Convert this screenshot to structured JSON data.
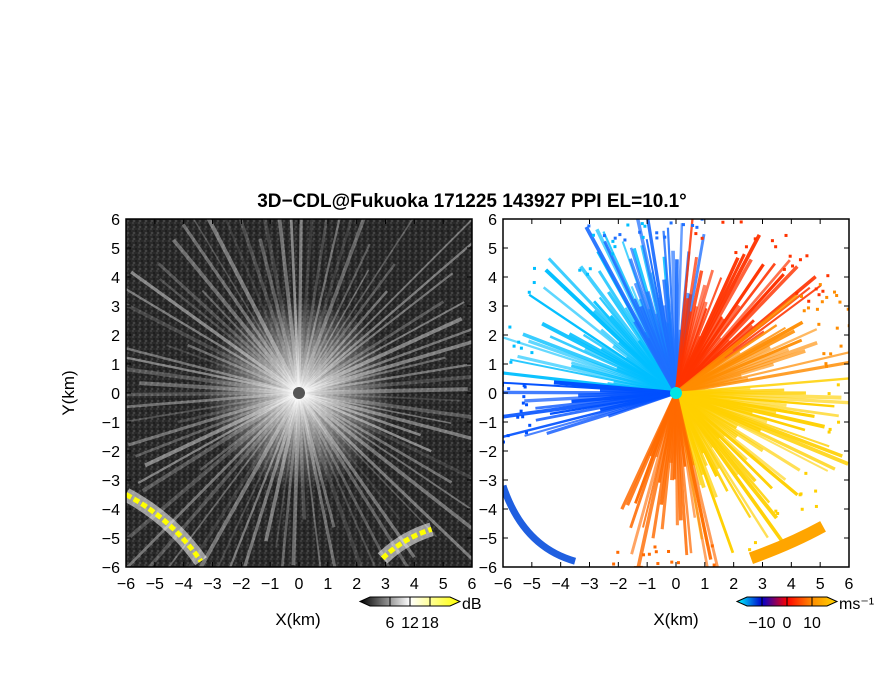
{
  "title": "3D−CDL@Fukuoka 171225 143927 PPI EL=10.1°",
  "chart_data": [
    {
      "type": "heatmap",
      "quantity": "backscatter intensity",
      "xlabel": "X(km)",
      "ylabel": "Y(km)",
      "xlim": [
        -6,
        6
      ],
      "ylim": [
        -6,
        6
      ],
      "x_ticks": [
        "−6",
        "−5",
        "−4",
        "−3",
        "−2",
        "−1",
        "0",
        "1",
        "2",
        "3",
        "4",
        "5",
        "6"
      ],
      "y_ticks": [
        "−6",
        "−5",
        "−4",
        "−3",
        "−2",
        "−1",
        "0",
        "1",
        "2",
        "3",
        "4",
        "5",
        "6"
      ],
      "colorbar": {
        "unit": "dB",
        "ticks": [
          "6",
          "12",
          "18"
        ],
        "tick_values": [
          6,
          12,
          18
        ],
        "range": [
          0,
          24
        ],
        "colors": [
          "#000000",
          "#ffffff",
          "#ffff00"
        ]
      },
      "features": [
        {
          "kind": "radial-spokes",
          "center": [
            0,
            0
          ]
        },
        {
          "kind": "high-echo-band",
          "from": [
            -6,
            -3.5
          ],
          "to": [
            -3.4,
            -5.8
          ],
          "color": "#ffff00"
        },
        {
          "kind": "high-echo-band",
          "from": [
            2.9,
            -5.7
          ],
          "to": [
            4.6,
            -4.7
          ],
          "color": "#ffff00"
        }
      ]
    },
    {
      "type": "heatmap",
      "quantity": "Doppler radial velocity",
      "xlabel": "X(km)",
      "ylabel": "",
      "xlim": [
        -6,
        6
      ],
      "ylim": [
        -6,
        6
      ],
      "x_ticks": [
        "−6",
        "−5",
        "−4",
        "−3",
        "−2",
        "−1",
        "0",
        "1",
        "2",
        "3",
        "4",
        "5",
        "6"
      ],
      "y_ticks": [
        "−6",
        "−5",
        "−4",
        "−3",
        "−2",
        "−1",
        "0",
        "1",
        "2",
        "3",
        "4",
        "5",
        "6"
      ],
      "colorbar": {
        "unit": "ms⁻¹",
        "ticks": [
          "−10",
          "0",
          "10"
        ],
        "tick_values": [
          -10,
          0,
          10
        ],
        "range": [
          -16,
          16
        ],
        "colors": [
          "#00ffff",
          "#0000cc",
          "#ff0000",
          "#ff8c00",
          "#ffd700"
        ]
      },
      "sectors": [
        {
          "from_deg": 95,
          "to_deg": 175,
          "color": "#00bfff"
        },
        {
          "from_deg": 80,
          "to_deg": 120,
          "color": "#1e6fff"
        },
        {
          "from_deg": 175,
          "to_deg": 200,
          "color": "#0050ff"
        },
        {
          "from_deg": 35,
          "to_deg": 85,
          "color": "#ff3300"
        },
        {
          "from_deg": 10,
          "to_deg": 40,
          "color": "#ff8c00"
        },
        {
          "from_deg": 280,
          "to_deg": 365,
          "color": "#ffd000"
        },
        {
          "from_deg": 245,
          "to_deg": 285,
          "color": "#ff6a00"
        }
      ]
    }
  ]
}
